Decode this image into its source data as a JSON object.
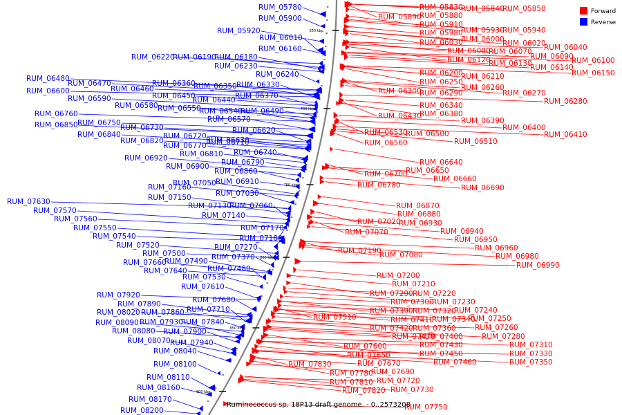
{
  "title": "Ruminococcus sp. 18P13 draft genome. - 0..2573208",
  "legend": [
    {
      "label": "Forward",
      "color": "#ff0000"
    },
    {
      "label": "Reverse",
      "color": "#0000ff"
    }
  ],
  "colors": {
    "forward": "#ff0000",
    "reverse": "#0000ff",
    "backbone": "#808080",
    "tick": "#000000"
  },
  "ticks": [
    "650 kbp",
    "700 kbp",
    "750 kbp",
    "800 kbp",
    "850 kbp",
    "900 kbp"
  ],
  "reverse_labels": [
    "RUM_05780",
    "RUM_05900",
    "RUM_05920",
    "RUM_06010",
    "RUM_06160",
    "RUM_06220",
    "RUM_06190",
    "RUM_06180",
    "RUM_06230",
    "RUM_06240",
    "RUM_06480",
    "RUM_06470",
    "RUM_06460",
    "RUM_06360",
    "RUM_06350",
    "RUM_06330",
    "RUM_06600",
    "RUM_06450",
    "RUM_06370",
    "RUM_06590",
    "RUM_06440",
    "RUM_06580",
    "RUM_06550",
    "RUM_06540",
    "RUM_06490",
    "RUM_06760",
    "RUM_06570",
    "RUM_06850",
    "RUM_06750",
    "RUM_06730",
    "RUM_06620",
    "RUM_06840",
    "RUM_06720",
    "RUM_06630",
    "RUM_06820",
    "RUM_06770",
    "RUM_06710",
    "RUM_06740",
    "RUM_06810",
    "RUM_06920",
    "RUM_06790",
    "RUM_06900",
    "RUM_06860",
    "RUM_07050",
    "RUM_06910",
    "RUM_07160",
    "RUM_07030",
    "RUM_07150",
    "RUM_07630",
    "RUM_07130",
    "RUM_07060",
    "RUM_07570",
    "RUM_07140",
    "RUM_07560",
    "RUM_07550",
    "RUM_07170",
    "RUM_07540",
    "RUM_07180",
    "RUM_07520",
    "RUM_07270",
    "RUM_07500",
    "RUM_07370",
    "RUM_07660",
    "RUM_07490",
    "RUM_07640",
    "RUM_07480",
    "RUM_07530",
    "RUM_07610",
    "RUM_07920",
    "RUM_07680",
    "RUM_07890",
    "RUM_07710",
    "RUM_08020",
    "RUM_07860",
    "RUM_08090",
    "RUM_07930",
    "RUM_07840",
    "RUM_08080",
    "RUM_07900",
    "RUM_08070",
    "RUM_07940",
    "RUM_08040",
    "RUM_08100",
    "RUM_08110",
    "RUM_08160",
    "RUM_08170",
    "RUM_08200"
  ],
  "forward_labels": [
    "RUM_05830",
    "RUM_05840",
    "RUM_05850",
    "RUM_05890",
    "RUM_05880",
    "RUM_05910",
    "RUM_05930",
    "RUM_05940",
    "RUM_05980",
    "RUM_06000",
    "RUM_06030",
    "RUM_06020",
    "RUM_06040",
    "RUM_06080",
    "RUM_06070",
    "RUM_06120",
    "RUM_06090",
    "RUM_06100",
    "RUM_06130",
    "RUM_06140",
    "RUM_06150",
    "RUM_06200",
    "RUM_06210",
    "RUM_06250",
    "RUM_06260",
    "RUM_06300",
    "RUM_06290",
    "RUM_06270",
    "RUM_06280",
    "RUM_06340",
    "RUM_06380",
    "RUM_06430",
    "RUM_06390",
    "RUM_06400",
    "RUM_06410",
    "RUM_06530",
    "RUM_06500",
    "RUM_06560",
    "RUM_06510",
    "RUM_06640",
    "RUM_06650",
    "RUM_06700",
    "RUM_06660",
    "RUM_06690",
    "RUM_06780",
    "RUM_06870",
    "RUM_06880",
    "RUM_07020",
    "RUM_06930",
    "RUM_06940",
    "RUM_07070",
    "RUM_06950",
    "RUM_06960",
    "RUM_07190",
    "RUM_07080",
    "RUM_06980",
    "RUM_06990",
    "RUM_07200",
    "RUM_07210",
    "RUM_07290",
    "RUM_07220",
    "RUM_07300",
    "RUM_07230",
    "RUM_07390",
    "RUM_07320",
    "RUM_07240",
    "RUM_07510",
    "RUM_07410",
    "RUM_07340",
    "RUM_07250",
    "RUM_07420",
    "RUM_07360",
    "RUM_07260",
    "RUM_07470",
    "RUM_07400",
    "RUM_07280",
    "RUM_07430",
    "RUM_07310",
    "RUM_07600",
    "RUM_07450",
    "RUM_07330",
    "RUM_07650",
    "RUM_07460",
    "RUM_07350",
    "RUM_07670",
    "RUM_07830",
    "RUM_07690",
    "RUM_07780",
    "RUM_07720",
    "RUM_07810",
    "RUM_07730",
    "RUM_07820",
    "RUM_07750"
  ]
}
